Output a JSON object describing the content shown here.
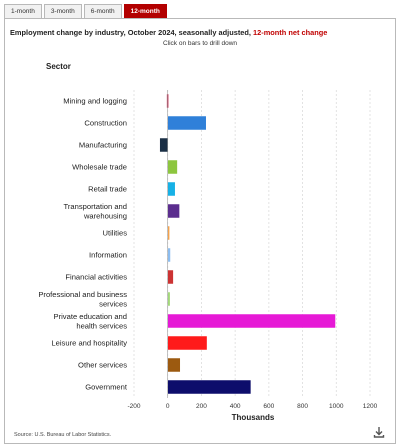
{
  "tabs": [
    {
      "label": "1-month",
      "active": false
    },
    {
      "label": "3-month",
      "active": false
    },
    {
      "label": "6-month",
      "active": false
    },
    {
      "label": "12-month",
      "active": true
    }
  ],
  "header": {
    "title_main": "Employment change by industry, October 2024, seasonally adjusted, ",
    "title_highlight": "12-month net change",
    "subtitle": "Click on bars to drill down",
    "sector_heading": "Sector"
  },
  "footer": {
    "source": "Source: U.S. Bureau of Labor Statistics.",
    "download_icon": "download-icon"
  },
  "chart_data": {
    "type": "bar",
    "orientation": "horizontal",
    "categories": [
      "Mining and logging",
      "Construction",
      "Manufacturing",
      "Wholesale trade",
      "Retail trade",
      "Transportation and warehousing",
      "Utilities",
      "Information",
      "Financial activities",
      "Professional and business services",
      "Private education and health services",
      "Leisure and hospitality",
      "Other services",
      "Government"
    ],
    "values": [
      -5,
      227,
      -46,
      56,
      43,
      69,
      10,
      15,
      32,
      13,
      994,
      232,
      73,
      492
    ],
    "colors": [
      "#c0143c",
      "#2f80d9",
      "#1a2f45",
      "#8dc63f",
      "#17b1e6",
      "#5b2d8e",
      "#f5a24b",
      "#8cbdf0",
      "#cc3333",
      "#a3d87a",
      "#e619d6",
      "#ff1a1a",
      "#9c5a10",
      "#0d0d6b"
    ],
    "xlabel": "Thousands",
    "xlim": [
      -200,
      1200
    ],
    "xticks": [
      -200,
      0,
      200,
      400,
      600,
      800,
      1000,
      1200
    ],
    "grid": true,
    "grid_style": "dashed"
  }
}
